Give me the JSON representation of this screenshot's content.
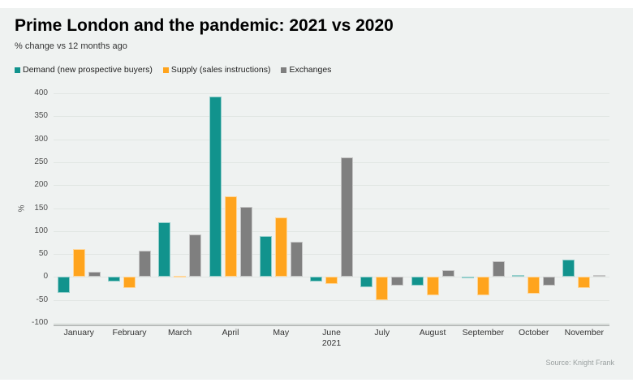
{
  "page": {
    "title": "Prime London and the pandemic: 2021 vs 2020",
    "subtitle": "% change vs 12 months ago",
    "source": "Source: Knight Frank"
  },
  "colors": {
    "background": "#eff2f1",
    "grid": "#e1e6e3",
    "axis_line": "#b8bcba",
    "demand_teal": "#11938d",
    "supply_orange": "#ffa41d",
    "exchanges_gray": "#7f7f7f"
  },
  "chart_data": {
    "type": "bar",
    "title": "Prime London and the pandemic: 2021 vs 2020",
    "subtitle": "% change vs 12 months ago",
    "xlabel": "",
    "ylabel": "%",
    "ylim": [
      -100,
      400
    ],
    "ytick_step": 50,
    "grid": true,
    "legend_position": "top-left",
    "categories": [
      "January",
      "February",
      "March",
      "April",
      "May",
      "June",
      "July",
      "August",
      "September",
      "October",
      "November"
    ],
    "category_sublabels": {
      "5": "2021"
    },
    "series": [
      {
        "key": "demand",
        "name": "Demand (new prospective buyers)",
        "color": "#11938d",
        "values": [
          -35,
          -10,
          120,
          393,
          90,
          -10,
          -22,
          -18,
          -3,
          5,
          38
        ]
      },
      {
        "key": "supply",
        "name": "Supply (sales instructions)",
        "color": "#ffa41d",
        "values": [
          60,
          -25,
          1,
          175,
          130,
          -15,
          -50,
          -40,
          -40,
          -37,
          -25
        ]
      },
      {
        "key": "exchanges",
        "name": "Exchanges",
        "color": "#7f7f7f",
        "values": [
          12,
          57,
          93,
          153,
          77,
          261,
          -18,
          15,
          35,
          -18,
          5
        ]
      }
    ]
  }
}
